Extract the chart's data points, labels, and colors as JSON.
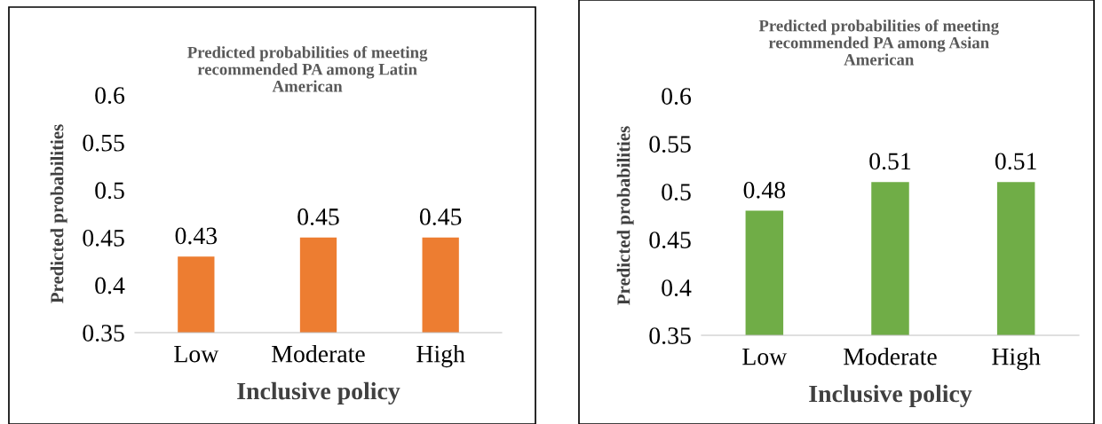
{
  "chart_data": [
    {
      "type": "bar",
      "title": "Predicted probabilities of meeting\nrecommended PA among Latin\nAmerican",
      "xlabel": "Inclusive policy",
      "ylabel": "Predicted probabilities",
      "categories": [
        "Low",
        "Moderate",
        "High"
      ],
      "values": [
        0.43,
        0.45,
        0.45
      ],
      "color": "#ed7d31",
      "ylim": [
        0.35,
        0.6
      ],
      "yticks": [
        0.35,
        0.4,
        0.45,
        0.5,
        0.55,
        0.6
      ],
      "data_labels": true,
      "grid": false,
      "legend": false
    },
    {
      "type": "bar",
      "title": "Predicted probabilities of meeting\nrecommended PA among Asian\nAmerican",
      "xlabel": "Inclusive policy",
      "ylabel": "Predicted probabilities",
      "categories": [
        "Low",
        "Moderate",
        "High"
      ],
      "values": [
        0.48,
        0.51,
        0.51
      ],
      "color": "#70ad47",
      "ylim": [
        0.35,
        0.6
      ],
      "yticks": [
        0.35,
        0.4,
        0.45,
        0.5,
        0.55,
        0.6
      ],
      "data_labels": true,
      "grid": false,
      "legend": false
    }
  ]
}
